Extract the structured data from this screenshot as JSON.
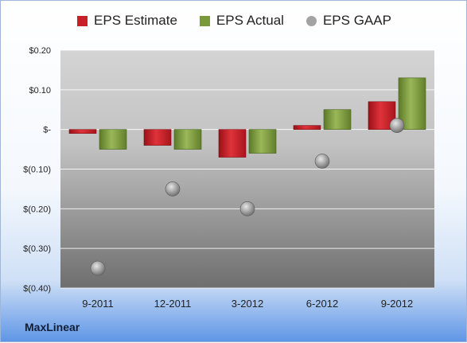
{
  "company": "MaxLinear",
  "colors": {
    "estimate": "#c8202a",
    "actual": "#7a9a3a",
    "gaap": "#a3a3a3"
  },
  "chart_data": {
    "type": "bar",
    "categories": [
      "9-2011",
      "12-2011",
      "3-2012",
      "6-2012",
      "9-2012"
    ],
    "series": [
      {
        "name": "EPS Estimate",
        "kind": "bar",
        "values": [
          -0.01,
          -0.04,
          -0.07,
          0.01,
          0.07
        ]
      },
      {
        "name": "EPS Actual",
        "kind": "bar",
        "values": [
          -0.05,
          -0.05,
          -0.06,
          0.05,
          0.13
        ]
      },
      {
        "name": "EPS GAAP",
        "kind": "scatter",
        "values": [
          -0.35,
          -0.15,
          -0.2,
          -0.08,
          0.01
        ]
      }
    ],
    "yticks": [
      {
        "value": 0.2,
        "label": "$0.20"
      },
      {
        "value": 0.1,
        "label": "$0.10"
      },
      {
        "value": 0,
        "label": "$-"
      },
      {
        "value": -0.1,
        "label": "$(0.10)"
      },
      {
        "value": -0.2,
        "label": "$(0.20)"
      },
      {
        "value": -0.3,
        "label": "$(0.30)"
      },
      {
        "value": -0.4,
        "label": "$(0.40)"
      }
    ],
    "ylim": [
      -0.4,
      0.2
    ],
    "grid": true,
    "legend": "top"
  }
}
